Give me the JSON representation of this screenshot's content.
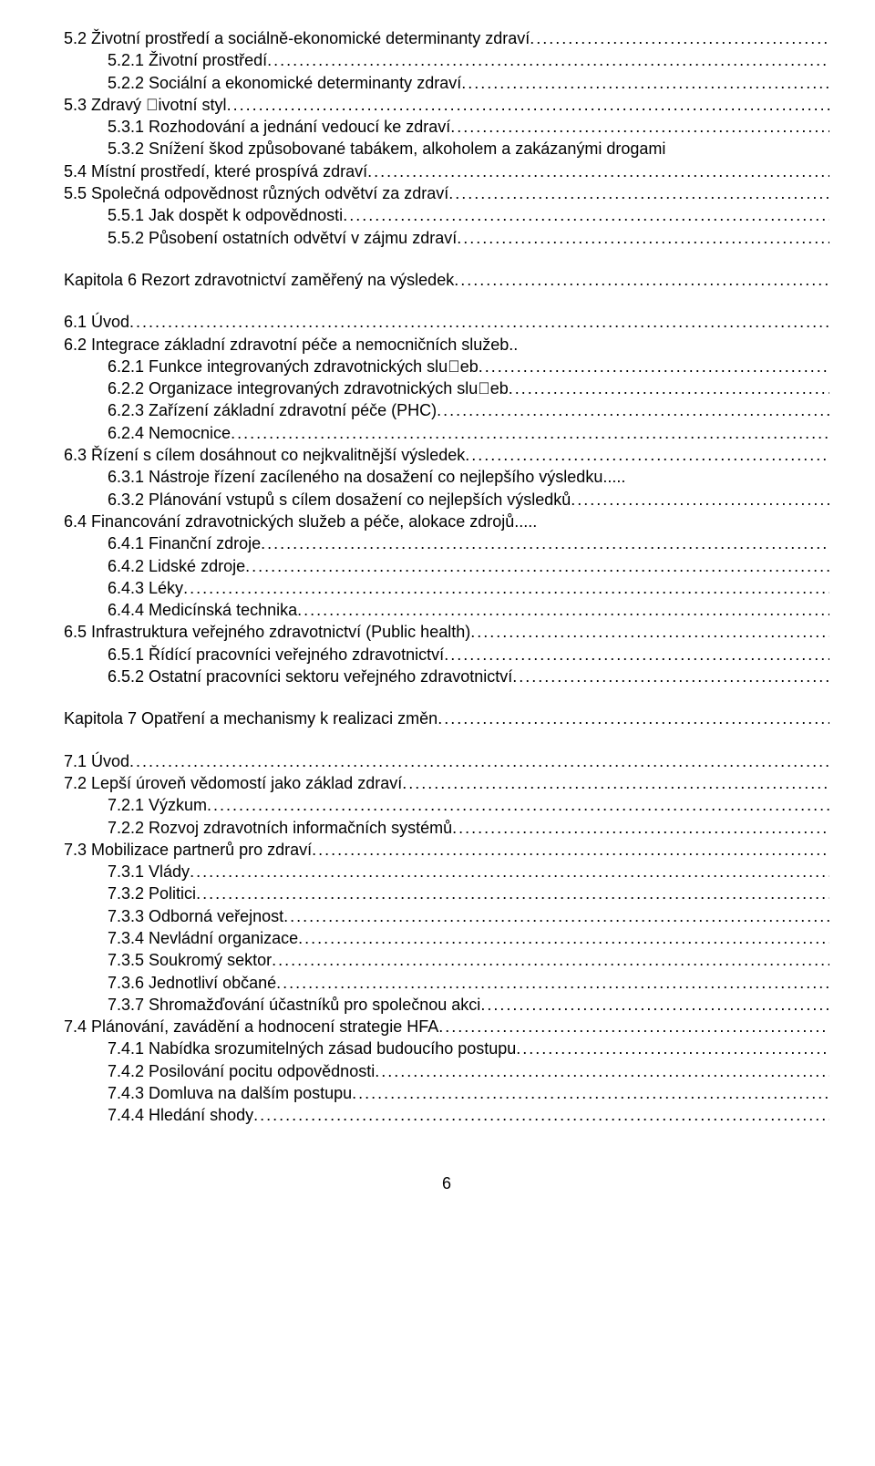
{
  "lines": [
    {
      "level": 0,
      "text": "5.2  Životní prostředí a sociálně-ekonomické determinanty zdraví",
      "dots": true
    },
    {
      "level": 1,
      "text": "5.2.1 Životní prostředí",
      "dots": true
    },
    {
      "level": 1,
      "text": "5.2.2 Sociální a ekonomické determinanty zdraví",
      "dots": true
    },
    {
      "level": 0,
      "text": "5.3  Zdravý ￿ivotní styl",
      "dots": true
    },
    {
      "level": 1,
      "text": "5.3.1 Rozhodování a jednání vedoucí ke zdraví",
      "dots": true
    },
    {
      "level": 1,
      "text": "5.3.2 Snížení škod způsobované tabákem, alkoholem a zakázanými drogami",
      "dots": false
    },
    {
      "level": 0,
      "text": "5.4  Místní prostředí, které prospívá zdraví",
      "dots": true
    },
    {
      "level": 0,
      "text": "5.5  Společná odpovědnost různých odvětví za zdraví",
      "dots": true
    },
    {
      "level": 1,
      "text": "5.5.1  Jak dospět k odpovědnosti",
      "dots": true
    },
    {
      "level": 1,
      "text": "5.5.2  Působení ostatních odvětví v zájmu zdraví",
      "dots": true
    },
    {
      "gap": true
    },
    {
      "level": 0,
      "text": "Kapitola 6    Rezort zdravotnictví zaměřený na výsledek",
      "dots": true
    },
    {
      "gap": true
    },
    {
      "level": 0,
      "text": "6.1  Úvod",
      "dots": true
    },
    {
      "level": 0,
      "text": "6.2  Integrace základní zdravotní péče a nemocničních služeb..",
      "dots": false
    },
    {
      "level": 1,
      "text": "6.2.1  Funkce integrovaných zdravotnických slu￿eb",
      "dots": true
    },
    {
      "level": 1,
      "text": "6.2.2  Organizace integrovaných zdravotnických slu￿eb",
      "dots": true
    },
    {
      "level": 1,
      "text": "6.2.3  Zařízení základní zdravotní péče (PHC)",
      "dots": true
    },
    {
      "level": 1,
      "text": "6.2.4  Nemocnice",
      "dots": true
    },
    {
      "level": 0,
      "text": "6.3  Řízení s cílem dosáhnout co nejkvalitnější výsledek",
      "dots": true
    },
    {
      "level": 1,
      "text": "6.3.1  Nástroje řízení zacíleného na dosažení co nejlepšího výsledku.....",
      "dots": false
    },
    {
      "level": 1,
      "text": "6.3.2  Plánování vstupů s cílem dosažení co nejlepších výsledků",
      "dots": true
    },
    {
      "level": 0,
      "text": "6.4  Financování zdravotnických služeb a péče, alokace zdrojů.....",
      "dots": false
    },
    {
      "level": 1,
      "text": "6.4.1  Finanční zdroje",
      "dots": true
    },
    {
      "level": 1,
      "text": "6.4.2  Lidské zdroje",
      "dots": true
    },
    {
      "level": 1,
      "text": "6.4.3  Léky",
      "dots": true
    },
    {
      "level": 1,
      "text": "6.4.4 Medicínská technika",
      "dots": true
    },
    {
      "level": 0,
      "text": "6.5  Infrastruktura veřejného zdravotnictví (Public health) ",
      "dots": true
    },
    {
      "level": 1,
      "text": "6.5.1  Řídící pracovníci veřejného zdravotnictví",
      "dots": true
    },
    {
      "level": 1,
      "text": "6.5.2  Ostatní pracovníci sektoru veřejného zdravotnictví",
      "dots": true
    },
    {
      "gap": true
    },
    {
      "level": 0,
      "text": "Kapitola 7  Opatření a mechanismy k realizaci změn ",
      "dots": true
    },
    {
      "gap": true
    },
    {
      "level": 0,
      "text": "7.1  Úvod",
      "dots": true
    },
    {
      "level": 0,
      "text": "7.2  Lepší úroveň vědomostí jako základ zdraví",
      "dots": true
    },
    {
      "level": 1,
      "text": "7.2.1 Výzkum",
      "dots": true
    },
    {
      "level": 1,
      "text": "7.2.2  Rozvoj zdravotních informačních systémů",
      "dots": true
    },
    {
      "level": 0,
      "text": "7.3  Mobilizace partnerů pro zdraví",
      "dots": true
    },
    {
      "level": 1,
      "text": "7.3.1  Vlády",
      "dots": true
    },
    {
      "level": 1,
      "text": "7.3.2  Politici",
      "dots": true
    },
    {
      "level": 1,
      "text": "7.3.3  Odborná veřejnost",
      "dots": true
    },
    {
      "level": 1,
      "text": "7.3.4  Nevládní organizace",
      "dots": true
    },
    {
      "level": 1,
      "text": "7.3.5  Soukromý sektor",
      "dots": true
    },
    {
      "level": 1,
      "text": "7.3.6   Jednotliví občané",
      "dots": true
    },
    {
      "level": 1,
      "text": "7.3.7  Shromažďování účastníků pro společnou akci",
      "dots": true
    },
    {
      "level": 0,
      "text": "7.4  Plánování, zavádění a hodnocení strategie HFA",
      "dots": true
    },
    {
      "level": 1,
      "text": "7.4.1  Nabídka srozumitelných zásad budoucího postupu",
      "dots": true
    },
    {
      "level": 1,
      "text": "7.4.2  Posilování pocitu odpovědnosti",
      "dots": true
    },
    {
      "level": 1,
      "text": "7.4.3  Domluva na dalším postupu",
      "dots": true
    },
    {
      "level": 1,
      "text": "7.4.4  Hledání shody",
      "dots": true
    }
  ],
  "pageNumber": "6"
}
